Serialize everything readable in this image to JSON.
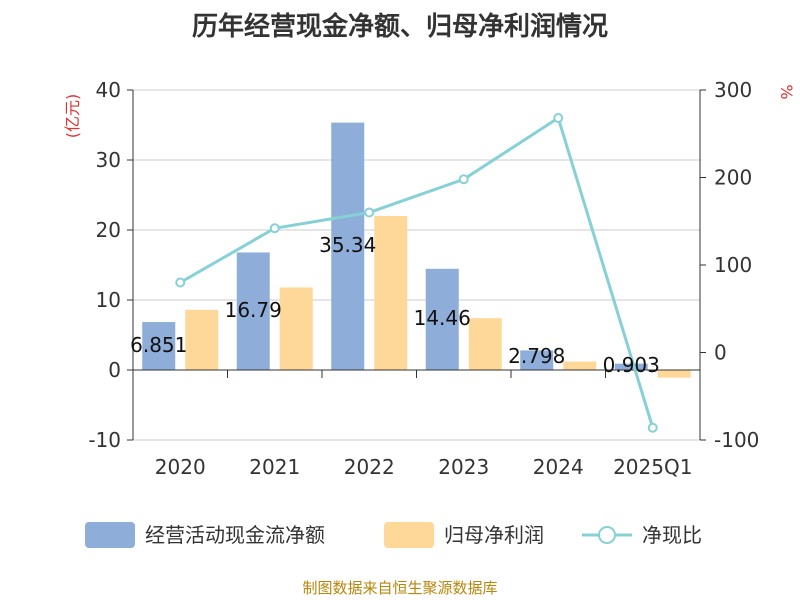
{
  "title": "历年经营现金净额、归母净利润情况",
  "source": "制图数据来自恒生聚源数据库",
  "chart_data": {
    "type": "bar",
    "categories": [
      "2020",
      "2021",
      "2022",
      "2023",
      "2024",
      "2025Q1"
    ],
    "series": [
      {
        "name": "经营活动现金流净额",
        "type": "bar",
        "axis": "left",
        "color": "#8eadd8",
        "values": [
          6.851,
          16.79,
          35.34,
          14.46,
          2.798,
          0.903
        ],
        "labels": [
          "6.851",
          "16.79",
          "35.34",
          "14.46",
          "2.798",
          "0.903"
        ]
      },
      {
        "name": "归母净利润",
        "type": "bar",
        "axis": "left",
        "color": "#fdd898",
        "values": [
          8.6,
          11.8,
          22.0,
          7.4,
          1.2,
          -1.1
        ]
      },
      {
        "name": "净现比",
        "type": "line",
        "axis": "right",
        "color": "#86d1d5",
        "values": [
          80,
          142,
          160,
          198,
          268,
          -86
        ]
      }
    ],
    "left_axis": {
      "unit": "(亿元)",
      "ylim": [
        -10,
        40
      ],
      "ticks": [
        -10,
        0,
        10,
        20,
        30,
        40
      ]
    },
    "right_axis": {
      "unit": "%",
      "ylim": [
        -100,
        300
      ],
      "ticks": [
        -100,
        0,
        100,
        200,
        300
      ]
    },
    "grid": true,
    "legend_position": "bottom"
  }
}
